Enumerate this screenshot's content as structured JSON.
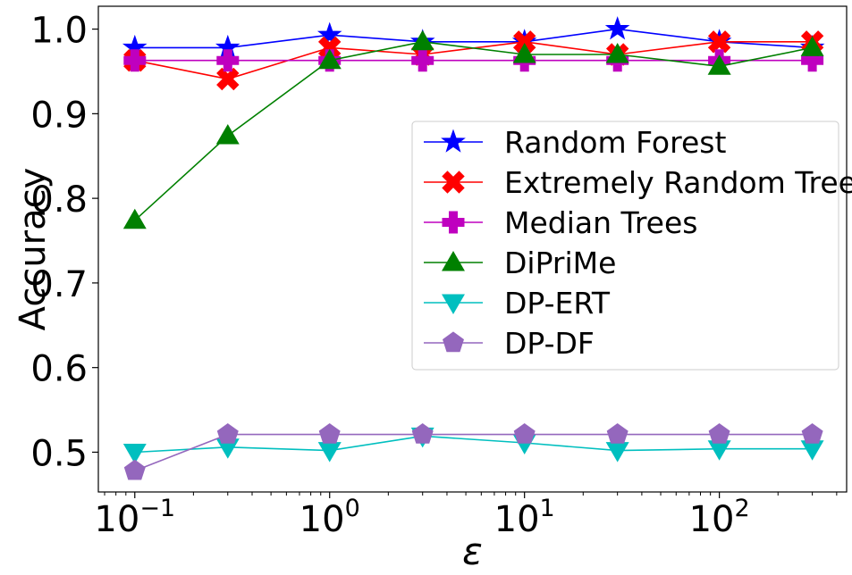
{
  "chart_data": {
    "type": "line",
    "xlabel": "ε",
    "ylabel": "Accuracy",
    "x_scale": "log",
    "xlim": [
      0.065,
      450
    ],
    "ylim": [
      0.453,
      1.027
    ],
    "x": [
      0.1,
      0.3,
      1,
      3,
      10,
      30,
      100,
      300
    ],
    "x_ticks": [
      {
        "value": 0.1,
        "base": "10",
        "exp": "−1"
      },
      {
        "value": 1,
        "base": "10",
        "exp": "0"
      },
      {
        "value": 10,
        "base": "10",
        "exp": "1"
      },
      {
        "value": 100,
        "base": "10",
        "exp": "2"
      }
    ],
    "y_ticks": [
      {
        "value": 0.5,
        "label": "0.5"
      },
      {
        "value": 0.6,
        "label": "0.6"
      },
      {
        "value": 0.7,
        "label": "0.7"
      },
      {
        "value": 0.8,
        "label": "0.8"
      },
      {
        "value": 0.9,
        "label": "0.9"
      },
      {
        "value": 1.0,
        "label": "1.0"
      }
    ],
    "grid": false,
    "legend_position": "center-right",
    "series": [
      {
        "name": "Random Forest",
        "color": "#0000ff",
        "marker": "star",
        "values": [
          0.978,
          0.978,
          0.993,
          0.985,
          0.985,
          1.0,
          0.985,
          0.978
        ]
      },
      {
        "name": "Extremely Random Trees",
        "color": "#ff0000",
        "marker": "x",
        "values": [
          0.963,
          0.941,
          0.978,
          0.97,
          0.985,
          0.97,
          0.985,
          0.985
        ]
      },
      {
        "name": "Median Trees",
        "color": "#bf00bf",
        "marker": "plus",
        "values": [
          0.963,
          0.963,
          0.963,
          0.963,
          0.963,
          0.963,
          0.963,
          0.963
        ]
      },
      {
        "name": "DiPriMe",
        "color": "#008000",
        "marker": "triangle-up",
        "values": [
          0.774,
          0.874,
          0.963,
          0.985,
          0.97,
          0.97,
          0.956,
          0.978
        ]
      },
      {
        "name": "DP-ERT",
        "color": "#00bfbf",
        "marker": "triangle-down",
        "values": [
          0.5,
          0.506,
          0.502,
          0.519,
          0.511,
          0.502,
          0.504,
          0.504
        ]
      },
      {
        "name": "DP-DF",
        "color": "#9467bd",
        "marker": "pentagon",
        "values": [
          0.478,
          0.521,
          0.521,
          0.521,
          0.521,
          0.521,
          0.521,
          0.521
        ]
      }
    ]
  }
}
